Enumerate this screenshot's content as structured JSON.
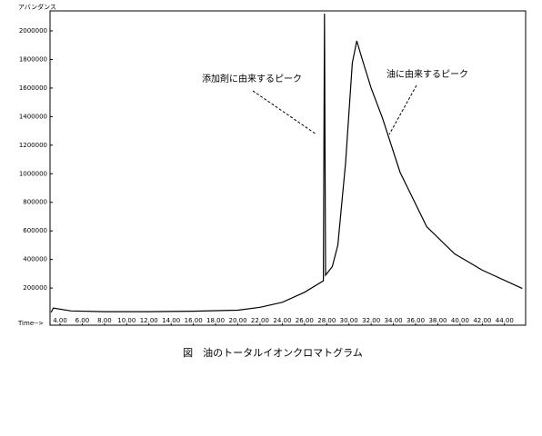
{
  "chart_data": {
    "type": "line",
    "y_axis_label": "アバンダンス",
    "x_axis_label": "Time-->",
    "caption": "図　油のトータルイオンクロマトグラム",
    "annotations": [
      {
        "text": "添加剤に由来するピーク"
      },
      {
        "text": "油に由来するピーク"
      }
    ],
    "x": [
      3.2,
      3.4,
      5,
      8,
      12,
      16,
      20,
      22,
      24,
      26,
      27.7,
      27.8,
      27.9,
      28.5,
      29,
      29.7,
      30.3,
      30.7,
      31.2,
      32,
      33,
      34.6,
      37,
      39.5,
      42,
      45.6
    ],
    "series": [
      {
        "color": "#000000",
        "values": [
          30000,
          60000,
          40000,
          35000,
          35000,
          38000,
          45000,
          65000,
          100000,
          170000,
          250000,
          2120000,
          290000,
          350000,
          500000,
          1075000,
          1775000,
          1930000,
          1800000,
          1600000,
          1393000,
          1011000,
          630000,
          440000,
          325000,
          197000
        ]
      }
    ],
    "xlim": [
      3.1,
      45.9
    ],
    "ylim": [
      -60000,
      2140000
    ],
    "xticks": [
      {
        "value": 4,
        "label": "4.00"
      },
      {
        "value": 6,
        "label": "6.00"
      },
      {
        "value": 8,
        "label": "8.00"
      },
      {
        "value": 10,
        "label": "10.00"
      },
      {
        "value": 12,
        "label": "12.00"
      },
      {
        "value": 14,
        "label": "14.00"
      },
      {
        "value": 16,
        "label": "16.00"
      },
      {
        "value": 18,
        "label": "18.00"
      },
      {
        "value": 20,
        "label": "20.00"
      },
      {
        "value": 22,
        "label": "22.00"
      },
      {
        "value": 24,
        "label": "24.00"
      },
      {
        "value": 26,
        "label": "26.00"
      },
      {
        "value": 28,
        "label": "28.00"
      },
      {
        "value": 30,
        "label": "30.00"
      },
      {
        "value": 32,
        "label": "32.00"
      },
      {
        "value": 34,
        "label": "34.00"
      },
      {
        "value": 36,
        "label": "36.00"
      },
      {
        "value": 38,
        "label": "38.00"
      },
      {
        "value": 40,
        "label": "40.00"
      },
      {
        "value": 42,
        "label": "42.00"
      },
      {
        "value": 44,
        "label": "44.00"
      }
    ],
    "yticks": [
      200000,
      400000,
      600000,
      800000,
      1000000,
      1200000,
      1400000,
      1600000,
      1800000,
      2000000
    ]
  }
}
